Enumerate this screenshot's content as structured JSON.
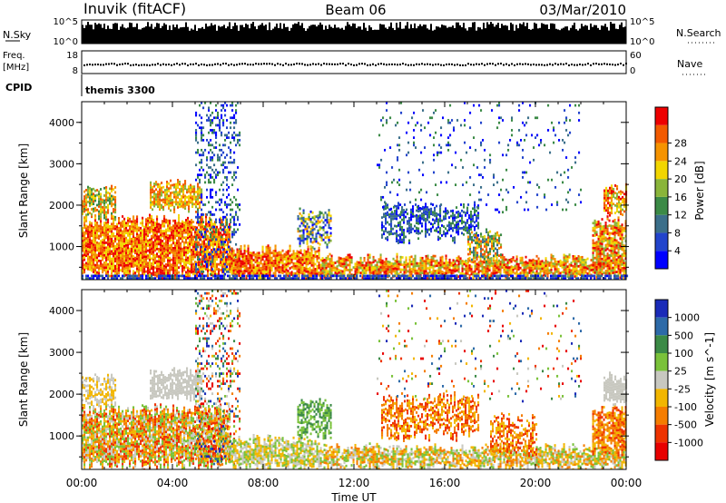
{
  "header": {
    "station": "Inuvik (fitACF)",
    "beam": "Beam 06",
    "date": "03/Mar/2010"
  },
  "nsky_panel": {
    "left_label": "N.Sky",
    "right_label": "N.Search",
    "left_ticks": [
      "10^5",
      "10^0"
    ],
    "right_ticks": [
      "10^5",
      "10^0"
    ]
  },
  "freq_panel": {
    "left_label_line1": "Freq.",
    "left_label_line2": "[MHz]",
    "right_label": "Nave",
    "left_ticks": [
      "18",
      "8"
    ],
    "right_ticks": [
      "60",
      "0"
    ],
    "freq_value_mhz": 11,
    "nave_value": 25
  },
  "cpid_panel": {
    "label": "CPID",
    "value": "themis 3300"
  },
  "chart_data": [
    {
      "type": "heatmap",
      "name": "power-panel",
      "ylabel": "Slant Range [km]",
      "ylim": [
        200,
        4500
      ],
      "yticks": [
        "1000",
        "2000",
        "3000",
        "4000"
      ],
      "ytick_values": [
        1000,
        2000,
        3000,
        4000
      ],
      "xlim_hours": [
        0,
        24
      ],
      "colorbar": {
        "label": "Power [dB]",
        "ticks": [
          "4",
          "8",
          "12",
          "16",
          "20",
          "24",
          "28"
        ],
        "colors": [
          "#0000ff",
          "#2244cc",
          "#3b6f8a",
          "#3b8a46",
          "#8ab53a",
          "#f2d600",
          "#f59300",
          "#f25a00",
          "#ee0000"
        ]
      }
    },
    {
      "type": "heatmap",
      "name": "velocity-panel",
      "ylabel": "Slant Range [km]",
      "ylim": [
        200,
        4500
      ],
      "yticks": [
        "1000",
        "2000",
        "3000",
        "4000"
      ],
      "ytick_values": [
        1000,
        2000,
        3000,
        4000
      ],
      "xlim_hours": [
        0,
        24
      ],
      "colorbar": {
        "label": "Velocity [m s^-1]",
        "ticks": [
          "1000",
          "500",
          "100",
          "25",
          "-25",
          "-100",
          "-500",
          "-1000"
        ],
        "colors": [
          "#1a2bb8",
          "#2d6aa8",
          "#3b8a46",
          "#7ac23a",
          "#c8c8c0",
          "#f2b600",
          "#f57d00",
          "#ee3300",
          "#e80000"
        ]
      }
    }
  ],
  "x_axis": {
    "label": "Time UT",
    "ticks": [
      "00:00",
      "04:00",
      "08:00",
      "12:00",
      "16:00",
      "20:00",
      "00:00"
    ]
  }
}
